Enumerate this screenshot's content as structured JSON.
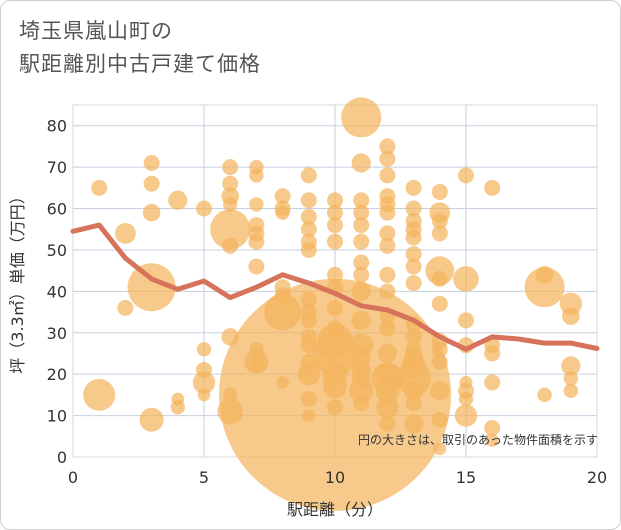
{
  "chart_data": {
    "type": "scatter",
    "title_line1": "埼玉県嵐山町の",
    "title_line2": "駅距離別中古戸建て価格",
    "xlabel": "駅距離（分）",
    "ylabel": "坪（3.3㎡）単価（万円）",
    "xlim": [
      0,
      20
    ],
    "ylim": [
      0,
      85
    ],
    "xticks": [
      "0",
      "5",
      "10",
      "15",
      "20"
    ],
    "yticks": [
      "0",
      "10",
      "20",
      "30",
      "40",
      "50",
      "60",
      "70",
      "80"
    ],
    "grid": true,
    "note": "円の大きさは、取引のあった物件面積を示す",
    "colors": {
      "bubble": "#f4b45d",
      "line": "#d7735a",
      "grid": "#c7d0e0",
      "plot_border": "#d9d9d9"
    },
    "bubbles": [
      {
        "x": 1,
        "y": 65,
        "s": 1
      },
      {
        "x": 1,
        "y": 15,
        "s": 2
      },
      {
        "x": 2,
        "y": 54,
        "s": 1.3
      },
      {
        "x": 2,
        "y": 36,
        "s": 1
      },
      {
        "x": 3,
        "y": 71,
        "s": 1
      },
      {
        "x": 3,
        "y": 66,
        "s": 1
      },
      {
        "x": 3,
        "y": 59,
        "s": 1.1
      },
      {
        "x": 3,
        "y": 41,
        "s": 3
      },
      {
        "x": 3,
        "y": 9,
        "s": 1.5
      },
      {
        "x": 4,
        "y": 62,
        "s": 1.2
      },
      {
        "x": 4,
        "y": 14,
        "s": 0.8
      },
      {
        "x": 4,
        "y": 12,
        "s": 0.9
      },
      {
        "x": 5,
        "y": 60,
        "s": 1
      },
      {
        "x": 5,
        "y": 26,
        "s": 0.9
      },
      {
        "x": 5,
        "y": 21,
        "s": 1
      },
      {
        "x": 5,
        "y": 18,
        "s": 1.4
      },
      {
        "x": 5,
        "y": 15,
        "s": 0.8
      },
      {
        "x": 6,
        "y": 70,
        "s": 1
      },
      {
        "x": 6,
        "y": 66,
        "s": 1
      },
      {
        "x": 6,
        "y": 63,
        "s": 1.1
      },
      {
        "x": 6,
        "y": 61,
        "s": 0.9
      },
      {
        "x": 6,
        "y": 55,
        "s": 2.5
      },
      {
        "x": 6,
        "y": 51,
        "s": 1
      },
      {
        "x": 6,
        "y": 29,
        "s": 1.1
      },
      {
        "x": 6,
        "y": 15,
        "s": 0.9
      },
      {
        "x": 6,
        "y": 11,
        "s": 1.6
      },
      {
        "x": 7,
        "y": 70,
        "s": 0.9
      },
      {
        "x": 7,
        "y": 68,
        "s": 0.9
      },
      {
        "x": 7,
        "y": 61,
        "s": 0.9
      },
      {
        "x": 7,
        "y": 56,
        "s": 1
      },
      {
        "x": 7,
        "y": 54,
        "s": 1
      },
      {
        "x": 7,
        "y": 52,
        "s": 1
      },
      {
        "x": 7,
        "y": 46,
        "s": 1
      },
      {
        "x": 7,
        "y": 26,
        "s": 0.9
      },
      {
        "x": 7,
        "y": 23,
        "s": 1.5
      },
      {
        "x": 7,
        "y": 22,
        "s": 0.9
      },
      {
        "x": 8,
        "y": 63,
        "s": 1
      },
      {
        "x": 8,
        "y": 60,
        "s": 1
      },
      {
        "x": 8,
        "y": 59,
        "s": 0.9
      },
      {
        "x": 8,
        "y": 41,
        "s": 1
      },
      {
        "x": 8,
        "y": 39,
        "s": 1
      },
      {
        "x": 8,
        "y": 35,
        "s": 2.3
      },
      {
        "x": 8,
        "y": 18,
        "s": 0.8
      },
      {
        "x": 9,
        "y": 68,
        "s": 1
      },
      {
        "x": 9,
        "y": 62,
        "s": 1
      },
      {
        "x": 9,
        "y": 58,
        "s": 1
      },
      {
        "x": 9,
        "y": 55,
        "s": 1
      },
      {
        "x": 9,
        "y": 52,
        "s": 1
      },
      {
        "x": 9,
        "y": 50,
        "s": 1
      },
      {
        "x": 9,
        "y": 38,
        "s": 1
      },
      {
        "x": 9,
        "y": 35,
        "s": 1
      },
      {
        "x": 9,
        "y": 33,
        "s": 1
      },
      {
        "x": 9,
        "y": 29,
        "s": 1
      },
      {
        "x": 9,
        "y": 27,
        "s": 1
      },
      {
        "x": 9,
        "y": 23,
        "s": 1
      },
      {
        "x": 9,
        "y": 20,
        "s": 1.4
      },
      {
        "x": 9,
        "y": 14,
        "s": 1
      },
      {
        "x": 9,
        "y": 10,
        "s": 0.8
      },
      {
        "x": 10,
        "y": 62,
        "s": 1
      },
      {
        "x": 10,
        "y": 59,
        "s": 1
      },
      {
        "x": 10,
        "y": 56,
        "s": 1
      },
      {
        "x": 10,
        "y": 52,
        "s": 1
      },
      {
        "x": 10,
        "y": 44,
        "s": 1
      },
      {
        "x": 10,
        "y": 41,
        "s": 1
      },
      {
        "x": 10,
        "y": 36,
        "s": 1
      },
      {
        "x": 10,
        "y": 31,
        "s": 1
      },
      {
        "x": 10,
        "y": 28,
        "s": 2.2
      },
      {
        "x": 10,
        "y": 25,
        "s": 2.8
      },
      {
        "x": 10,
        "y": 20,
        "s": 1.6
      },
      {
        "x": 10,
        "y": 17,
        "s": 1.5
      },
      {
        "x": 10,
        "y": 15,
        "s": 14.5
      },
      {
        "x": 10,
        "y": 12,
        "s": 1
      },
      {
        "x": 11,
        "y": 82,
        "s": 2.5
      },
      {
        "x": 11,
        "y": 71,
        "s": 1.2
      },
      {
        "x": 11,
        "y": 62,
        "s": 1
      },
      {
        "x": 11,
        "y": 59,
        "s": 1
      },
      {
        "x": 11,
        "y": 56,
        "s": 1
      },
      {
        "x": 11,
        "y": 52,
        "s": 1
      },
      {
        "x": 11,
        "y": 47,
        "s": 1
      },
      {
        "x": 11,
        "y": 44,
        "s": 1
      },
      {
        "x": 11,
        "y": 40,
        "s": 1.2
      },
      {
        "x": 11,
        "y": 33,
        "s": 1.2
      },
      {
        "x": 11,
        "y": 27,
        "s": 1.5
      },
      {
        "x": 11,
        "y": 24,
        "s": 1.2
      },
      {
        "x": 11,
        "y": 21,
        "s": 1.2
      },
      {
        "x": 11,
        "y": 19,
        "s": 1.2
      },
      {
        "x": 11,
        "y": 16,
        "s": 1.5
      },
      {
        "x": 11,
        "y": 13,
        "s": 1
      },
      {
        "x": 12,
        "y": 75,
        "s": 1
      },
      {
        "x": 12,
        "y": 72,
        "s": 1
      },
      {
        "x": 12,
        "y": 68,
        "s": 1
      },
      {
        "x": 12,
        "y": 63,
        "s": 1
      },
      {
        "x": 12,
        "y": 61,
        "s": 1
      },
      {
        "x": 12,
        "y": 59,
        "s": 1
      },
      {
        "x": 12,
        "y": 54,
        "s": 1
      },
      {
        "x": 12,
        "y": 51,
        "s": 1
      },
      {
        "x": 12,
        "y": 44,
        "s": 1
      },
      {
        "x": 12,
        "y": 40,
        "s": 1
      },
      {
        "x": 12,
        "y": 34,
        "s": 1
      },
      {
        "x": 12,
        "y": 31,
        "s": 1
      },
      {
        "x": 12,
        "y": 25,
        "s": 1.2
      },
      {
        "x": 12,
        "y": 20,
        "s": 1.4
      },
      {
        "x": 12,
        "y": 19,
        "s": 2
      },
      {
        "x": 12,
        "y": 16,
        "s": 1.5
      },
      {
        "x": 12,
        "y": 12,
        "s": 1.4
      },
      {
        "x": 12,
        "y": 8,
        "s": 1
      },
      {
        "x": 13,
        "y": 65,
        "s": 1
      },
      {
        "x": 13,
        "y": 60,
        "s": 1
      },
      {
        "x": 13,
        "y": 57,
        "s": 1
      },
      {
        "x": 13,
        "y": 55,
        "s": 1
      },
      {
        "x": 13,
        "y": 53,
        "s": 1
      },
      {
        "x": 13,
        "y": 49,
        "s": 1
      },
      {
        "x": 13,
        "y": 46,
        "s": 1
      },
      {
        "x": 13,
        "y": 42,
        "s": 1
      },
      {
        "x": 13,
        "y": 32,
        "s": 1
      },
      {
        "x": 13,
        "y": 29,
        "s": 1
      },
      {
        "x": 13,
        "y": 26,
        "s": 1
      },
      {
        "x": 13,
        "y": 24,
        "s": 1.2
      },
      {
        "x": 13,
        "y": 22,
        "s": 1.5
      },
      {
        "x": 13,
        "y": 19,
        "s": 2.2
      },
      {
        "x": 13,
        "y": 16,
        "s": 1.2
      },
      {
        "x": 13,
        "y": 13,
        "s": 1
      },
      {
        "x": 13,
        "y": 8,
        "s": 1.2
      },
      {
        "x": 14,
        "y": 64,
        "s": 1
      },
      {
        "x": 14,
        "y": 59,
        "s": 1.3
      },
      {
        "x": 14,
        "y": 57,
        "s": 1
      },
      {
        "x": 14,
        "y": 54,
        "s": 1
      },
      {
        "x": 14,
        "y": 45,
        "s": 1.8
      },
      {
        "x": 14,
        "y": 43,
        "s": 1
      },
      {
        "x": 14,
        "y": 37,
        "s": 1
      },
      {
        "x": 14,
        "y": 28,
        "s": 1
      },
      {
        "x": 14,
        "y": 26,
        "s": 1
      },
      {
        "x": 14,
        "y": 23,
        "s": 1
      },
      {
        "x": 14,
        "y": 16,
        "s": 1.2
      },
      {
        "x": 14,
        "y": 9,
        "s": 1
      },
      {
        "x": 14,
        "y": 2,
        "s": 0.8
      },
      {
        "x": 15,
        "y": 68,
        "s": 1
      },
      {
        "x": 15,
        "y": 43,
        "s": 1.6
      },
      {
        "x": 15,
        "y": 33,
        "s": 1
      },
      {
        "x": 15,
        "y": 27,
        "s": 1
      },
      {
        "x": 15,
        "y": 18,
        "s": 0.8
      },
      {
        "x": 15,
        "y": 16,
        "s": 1
      },
      {
        "x": 15,
        "y": 14,
        "s": 0.9
      },
      {
        "x": 15,
        "y": 10,
        "s": 1.4
      },
      {
        "x": 16,
        "y": 65,
        "s": 1
      },
      {
        "x": 16,
        "y": 27,
        "s": 1
      },
      {
        "x": 16,
        "y": 25,
        "s": 1
      },
      {
        "x": 16,
        "y": 18,
        "s": 1
      },
      {
        "x": 16,
        "y": 7,
        "s": 1
      },
      {
        "x": 16,
        "y": 4,
        "s": 0.8
      },
      {
        "x": 18,
        "y": 44,
        "s": 1.1
      },
      {
        "x": 18,
        "y": 41,
        "s": 2.5
      },
      {
        "x": 18,
        "y": 15,
        "s": 0.9
      },
      {
        "x": 19,
        "y": 37,
        "s": 1.4
      },
      {
        "x": 19,
        "y": 34,
        "s": 1.1
      },
      {
        "x": 19,
        "y": 22,
        "s": 1.2
      },
      {
        "x": 19,
        "y": 19,
        "s": 0.9
      },
      {
        "x": 19,
        "y": 16,
        "s": 0.9
      }
    ],
    "average_line": {
      "x": [
        0,
        1,
        2,
        3,
        4,
        5,
        6,
        7,
        8,
        9,
        10,
        11,
        12,
        13,
        14,
        15,
        16,
        17,
        18,
        19,
        20
      ],
      "y": [
        54.5,
        56,
        48,
        43,
        40.5,
        42.5,
        38.5,
        41,
        44,
        42,
        39.5,
        36.5,
        35.5,
        33,
        29,
        26,
        29,
        28.5,
        27.5,
        27.5,
        26.2
      ]
    }
  }
}
